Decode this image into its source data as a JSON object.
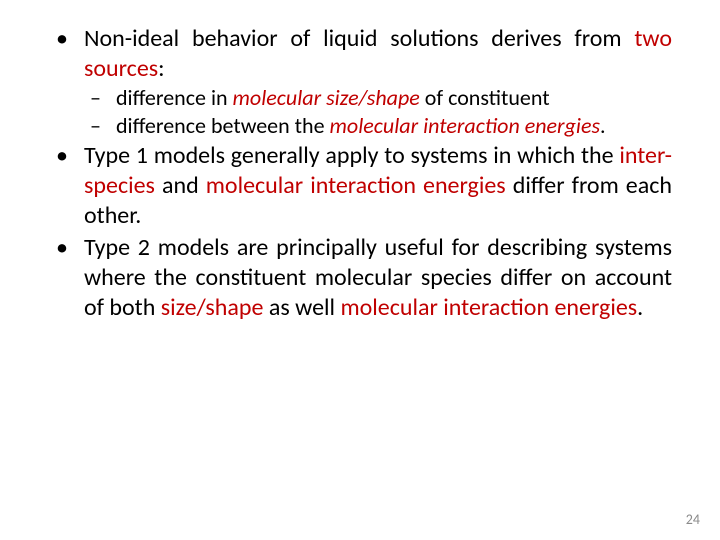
{
  "colors": {
    "accent_red": "#c00000",
    "text_black": "#000000",
    "page_num_gray": "#8a8a8a",
    "background": "#ffffff"
  },
  "typography": {
    "body_fontsize_pt": 18,
    "sub_fontsize_pt": 16.5,
    "pagenum_fontsize_pt": 10.5,
    "font_family": "Calibri"
  },
  "bullets": [
    {
      "pre": "Non-ideal behavior of liquid solutions derives from ",
      "red1": "two sources",
      "post": ":",
      "sub": [
        {
          "pre": "difference in ",
          "red_ital": "molecular size/shape",
          "post": " of constituent"
        },
        {
          "pre": "difference between the ",
          "red_ital": "molecular interaction energies",
          "post": "."
        }
      ]
    },
    {
      "pre": "Type 1 models generally apply to systems in which the ",
      "red_plain1": "inter-species",
      "mid": " and ",
      "red_plain2": "molecular interaction energies",
      "post": " differ from each other."
    },
    {
      "pre": "Type 2 models are principally useful for describing systems where the constituent molecular species differ on account of both ",
      "red_plain1": "size/shape",
      "mid": " as well ",
      "red_plain2": "molecular interaction energies",
      "post": "."
    }
  ],
  "page_number": "24"
}
